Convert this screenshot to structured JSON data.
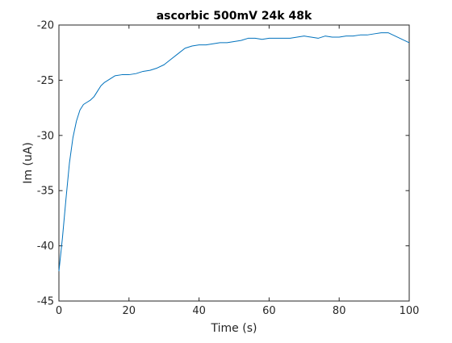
{
  "chart_data": {
    "type": "line",
    "title": "ascorbic 500mV 24k 48k",
    "xlabel": "Time (s)",
    "ylabel": "Im (uA)",
    "xlim": [
      0,
      100
    ],
    "ylim": [
      -45,
      -20
    ],
    "xticks": [
      0,
      20,
      40,
      60,
      80,
      100
    ],
    "yticks": [
      -45,
      -40,
      -35,
      -30,
      -25,
      -20
    ],
    "grid": false,
    "line_color": "#0072BD",
    "series": [
      {
        "x": [
          0,
          1,
          2,
          3,
          4,
          5,
          6,
          7,
          8,
          9,
          10,
          11,
          12,
          13,
          14,
          15,
          16,
          18,
          20,
          22,
          24,
          26,
          28,
          30,
          32,
          34,
          36,
          38,
          40,
          42,
          44,
          46,
          48,
          50,
          52,
          54,
          56,
          58,
          60,
          62,
          64,
          66,
          68,
          70,
          72,
          74,
          76,
          78,
          80,
          82,
          84,
          86,
          88,
          90,
          92,
          94,
          96,
          98,
          100
        ],
        "y": [
          -42.3,
          -39.3,
          -35.8,
          -32.5,
          -30.2,
          -28.7,
          -27.7,
          -27.2,
          -27.0,
          -26.8,
          -26.5,
          -26.0,
          -25.5,
          -25.2,
          -25.0,
          -24.8,
          -24.6,
          -24.5,
          -24.5,
          -24.4,
          -24.2,
          -24.1,
          -23.9,
          -23.6,
          -23.1,
          -22.6,
          -22.1,
          -21.9,
          -21.8,
          -21.8,
          -21.7,
          -21.6,
          -21.6,
          -21.5,
          -21.4,
          -21.2,
          -21.2,
          -21.3,
          -21.2,
          -21.2,
          -21.2,
          -21.2,
          -21.1,
          -21.0,
          -21.1,
          -21.2,
          -21.0,
          -21.1,
          -21.1,
          -21.0,
          -21.0,
          -20.9,
          -20.9,
          -20.8,
          -20.7,
          -20.7,
          -21.0,
          -21.3,
          -21.6
        ]
      }
    ]
  }
}
